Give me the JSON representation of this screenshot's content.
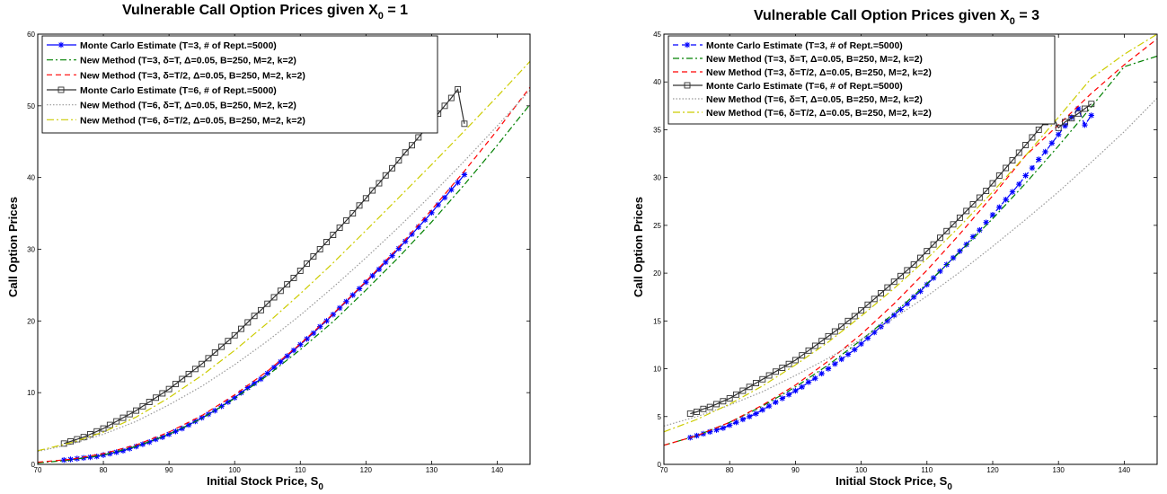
{
  "chart_data": [
    {
      "type": "line",
      "title": "Vulnerable Call Option Prices given X",
      "title_sub": "0",
      "title_tail": " = 1",
      "xlabel": "Initial Stock Price, S",
      "xlabel_sub": "0",
      "ylabel": "Call Option Prices",
      "xlim": [
        70,
        145
      ],
      "ylim": [
        0,
        60
      ],
      "xticks": [
        70,
        80,
        90,
        100,
        110,
        120,
        130,
        140
      ],
      "yticks": [
        0,
        10,
        20,
        30,
        40,
        50,
        60
      ],
      "legend_position": "top-left",
      "series": [
        {
          "name": "Monte Carlo Estimate (T=3, # of Rept.=5000)",
          "color": "#0000ff",
          "dash": "",
          "marker": "star",
          "x": [
            74,
            75,
            76,
            77,
            78,
            79,
            80,
            81,
            82,
            83,
            84,
            85,
            86,
            87,
            88,
            89,
            90,
            91,
            92,
            93,
            94,
            95,
            96,
            97,
            98,
            99,
            100,
            101,
            102,
            103,
            104,
            105,
            106,
            107,
            108,
            109,
            110,
            111,
            112,
            113,
            114,
            115,
            116,
            117,
            118,
            119,
            120,
            121,
            122,
            123,
            124,
            125,
            126,
            127,
            128,
            129,
            130,
            131,
            132,
            133,
            134,
            135
          ],
          "y": [
            0.6,
            0.7,
            0.8,
            0.9,
            1.0,
            1.1,
            1.3,
            1.5,
            1.7,
            1.9,
            2.2,
            2.5,
            2.8,
            3.1,
            3.5,
            3.8,
            4.2,
            4.6,
            5.0,
            5.5,
            6.0,
            6.5,
            7.0,
            7.5,
            8.1,
            8.7,
            9.3,
            10.0,
            10.7,
            11.3,
            11.9,
            12.7,
            13.5,
            14.3,
            15.1,
            15.9,
            16.7,
            17.5,
            18.3,
            19.2,
            20.0,
            20.9,
            21.8,
            22.7,
            23.6,
            24.5,
            25.4,
            26.3,
            27.2,
            28.2,
            29.1,
            30.1,
            31.1,
            32.1,
            33.1,
            34.1,
            35.1,
            36.2,
            37.2,
            38.3,
            39.3,
            40.4
          ]
        },
        {
          "name": "New Method (T=3, δ=T, Δ=0.05, B=250, M=2, k=2)",
          "color": "#008000",
          "dash": "7 3 2 3",
          "marker": "",
          "x": [
            70,
            75,
            80,
            85,
            90,
            95,
            100,
            105,
            110,
            115,
            120,
            125,
            130,
            135,
            140,
            145
          ],
          "y": [
            0.2,
            0.6,
            1.3,
            2.5,
            4.2,
            6.4,
            9.2,
            12.4,
            16.0,
            19.9,
            24.3,
            28.9,
            33.8,
            39.0,
            44.5,
            50.2
          ]
        },
        {
          "name": "New Method (T=3, δ=T/2, Δ=0.05, B=250, M=2, k=2)",
          "color": "#ff0000",
          "dash": "6 4",
          "marker": "",
          "x": [
            70,
            75,
            80,
            85,
            90,
            95,
            100,
            105,
            110,
            115,
            120,
            125,
            130,
            135,
            140,
            145
          ],
          "y": [
            0.3,
            0.7,
            1.5,
            2.7,
            4.5,
            6.8,
            9.7,
            13.0,
            16.8,
            21.0,
            25.5,
            30.3,
            35.5,
            40.9,
            46.6,
            52.6
          ]
        },
        {
          "name": "Monte Carlo Estimate (T=6, # of Rept.=5000)",
          "color": "#303030",
          "dash": "",
          "marker": "square",
          "x": [
            74,
            75,
            76,
            77,
            78,
            79,
            80,
            81,
            82,
            83,
            84,
            85,
            86,
            87,
            88,
            89,
            90,
            91,
            92,
            93,
            94,
            95,
            96,
            97,
            98,
            99,
            100,
            101,
            102,
            103,
            104,
            105,
            106,
            107,
            108,
            109,
            110,
            111,
            112,
            113,
            114,
            115,
            116,
            117,
            118,
            119,
            120,
            121,
            122,
            123,
            124,
            125,
            126,
            127,
            128,
            129,
            130,
            131,
            132,
            133,
            134,
            135
          ],
          "y": [
            2.9,
            3.2,
            3.5,
            3.8,
            4.2,
            4.6,
            5.0,
            5.5,
            6.0,
            6.5,
            7.0,
            7.5,
            8.1,
            8.7,
            9.3,
            9.9,
            10.5,
            11.2,
            11.9,
            12.6,
            13.3,
            14.0,
            14.8,
            15.6,
            16.4,
            17.2,
            18.0,
            18.9,
            19.8,
            20.7,
            21.5,
            22.4,
            23.3,
            24.2,
            25.1,
            26.0,
            27.0,
            28.0,
            29.0,
            30.0,
            31.0,
            32.0,
            33.0,
            34.0,
            35.0,
            36.1,
            37.1,
            38.2,
            39.2,
            40.3,
            41.3,
            42.4,
            43.5,
            44.5,
            45.6,
            46.7,
            47.8,
            48.9,
            50.0,
            51.1,
            52.3,
            47.5
          ]
        },
        {
          "name": "New Method (T=6, δ=T, Δ=0.05, B=250, M=2, k=2)",
          "color": "#999999",
          "dash": "1.5 2",
          "marker": "",
          "x": [
            70,
            75,
            80,
            85,
            90,
            95,
            100,
            105,
            110,
            115,
            120,
            125,
            130,
            135,
            140,
            145
          ],
          "y": [
            1.8,
            2.8,
            4.2,
            6.0,
            8.3,
            10.9,
            13.9,
            17.2,
            20.8,
            24.7,
            28.8,
            33.1,
            37.6,
            42.3,
            47.2,
            52.2
          ]
        },
        {
          "name": "New Method (T=6, δ=T/2, Δ=0.05, B=250, M=2, k=2)",
          "color": "#cccc00",
          "dash": "8 3 2 3",
          "marker": "",
          "x": [
            70,
            75,
            80,
            85,
            90,
            95,
            100,
            105,
            110,
            115,
            120,
            125,
            130,
            135,
            140,
            145
          ],
          "y": [
            1.9,
            3.0,
            4.5,
            6.6,
            9.3,
            12.4,
            15.9,
            19.7,
            23.8,
            28.1,
            32.6,
            37.2,
            41.8,
            46.5,
            51.3,
            56.2
          ]
        }
      ]
    },
    {
      "type": "line",
      "title": "Vulnerable Call Option Prices given X",
      "title_sub": "0",
      "title_tail": " = 3",
      "xlabel": "Initial Stock Price, S",
      "xlabel_sub": "0",
      "ylabel": "Call Option Prices",
      "xlim": [
        70,
        145
      ],
      "ylim": [
        0,
        45
      ],
      "xticks": [
        70,
        80,
        90,
        100,
        110,
        120,
        130,
        140
      ],
      "yticks": [
        0,
        5,
        10,
        15,
        20,
        25,
        30,
        35,
        40,
        45
      ],
      "legend_position": "top-left",
      "series": [
        {
          "name": "Monte Carlo Estimate (T=3, # of Rept.=5000)",
          "color": "#0000ff",
          "dash": "6 4",
          "marker": "star",
          "x": [
            74,
            75,
            76,
            77,
            78,
            79,
            80,
            81,
            82,
            83,
            84,
            85,
            86,
            87,
            88,
            89,
            90,
            91,
            92,
            93,
            94,
            95,
            96,
            97,
            98,
            99,
            100,
            101,
            102,
            103,
            104,
            105,
            106,
            107,
            108,
            109,
            110,
            111,
            112,
            113,
            114,
            115,
            116,
            117,
            118,
            119,
            120,
            121,
            122,
            123,
            124,
            125,
            126,
            127,
            128,
            129,
            130,
            131,
            132,
            133,
            134,
            135
          ],
          "y": [
            2.8,
            3.0,
            3.2,
            3.4,
            3.6,
            3.8,
            4.1,
            4.4,
            4.7,
            5.0,
            5.3,
            5.7,
            6.1,
            6.5,
            6.9,
            7.3,
            7.7,
            8.1,
            8.6,
            9.0,
            9.5,
            10.0,
            10.5,
            11.0,
            11.5,
            12.0,
            12.6,
            13.2,
            13.8,
            14.4,
            15.0,
            15.6,
            16.2,
            16.8,
            17.5,
            18.1,
            18.8,
            19.5,
            20.2,
            20.9,
            21.6,
            22.3,
            23.0,
            23.8,
            24.5,
            25.3,
            26.1,
            26.9,
            27.7,
            28.5,
            29.3,
            30.2,
            31.0,
            31.9,
            32.7,
            33.6,
            34.5,
            35.4,
            36.3,
            37.2,
            35.5,
            36.5
          ]
        },
        {
          "name": "New Method (T=3, δ=T, Δ=0.05, B=250, M=2, k=2)",
          "color": "#008000",
          "dash": "7 3 2 3",
          "marker": "",
          "x": [
            70,
            75,
            80,
            85,
            90,
            95,
            100,
            105,
            110,
            115,
            120,
            125,
            130,
            135,
            140,
            145
          ],
          "y": [
            2.0,
            3.0,
            4.4,
            6.1,
            8.1,
            10.4,
            13.0,
            15.8,
            18.9,
            22.2,
            25.7,
            29.4,
            33.3,
            37.4,
            41.6,
            42.7
          ]
        },
        {
          "name": "New Method (T=3, δ=T/2, Δ=0.05, B=250, M=2, k=2)",
          "color": "#ff0000",
          "dash": "6 4",
          "marker": "",
          "x": [
            70,
            75,
            80,
            85,
            90,
            95,
            100,
            105,
            110,
            115,
            120,
            125,
            130,
            135,
            140,
            145
          ],
          "y": [
            2.0,
            3.0,
            4.4,
            6.2,
            8.3,
            10.8,
            13.6,
            16.8,
            20.3,
            24.1,
            28.1,
            32.3,
            35.5,
            38.8,
            41.8,
            44.5
          ]
        },
        {
          "name": "Monte Carlo Estimate (T=6, # of Rept.=5000)",
          "color": "#303030",
          "dash": "",
          "marker": "square",
          "x": [
            74,
            75,
            76,
            77,
            78,
            79,
            80,
            81,
            82,
            83,
            84,
            85,
            86,
            87,
            88,
            89,
            90,
            91,
            92,
            93,
            94,
            95,
            96,
            97,
            98,
            99,
            100,
            101,
            102,
            103,
            104,
            105,
            106,
            107,
            108,
            109,
            110,
            111,
            112,
            113,
            114,
            115,
            116,
            117,
            118,
            119,
            120,
            121,
            122,
            123,
            124,
            125,
            126,
            127,
            128,
            129,
            130,
            131,
            132,
            133,
            134,
            135
          ],
          "y": [
            5.3,
            5.5,
            5.8,
            6.0,
            6.3,
            6.6,
            6.9,
            7.3,
            7.7,
            8.1,
            8.5,
            8.9,
            9.3,
            9.7,
            10.1,
            10.5,
            10.9,
            11.4,
            11.9,
            12.4,
            12.9,
            13.4,
            13.9,
            14.4,
            15.0,
            15.5,
            16.1,
            16.7,
            17.3,
            17.9,
            18.5,
            19.1,
            19.7,
            20.3,
            20.9,
            21.6,
            22.3,
            23.0,
            23.7,
            24.4,
            25.1,
            25.8,
            26.5,
            27.2,
            27.9,
            28.6,
            29.4,
            30.2,
            31.0,
            31.8,
            32.6,
            33.4,
            34.2,
            35.0,
            35.8,
            36.6,
            35.2,
            35.8,
            36.2,
            36.7,
            37.2,
            37.7
          ]
        },
        {
          "name": "New Method (T=6, δ=T, Δ=0.05, B=250, M=2, k=2)",
          "color": "#999999",
          "dash": "1.5 2",
          "marker": "",
          "x": [
            70,
            75,
            80,
            85,
            90,
            95,
            100,
            105,
            110,
            115,
            120,
            125,
            130,
            135,
            140,
            145
          ],
          "y": [
            4.0,
            5.0,
            6.2,
            7.6,
            9.3,
            11.1,
            13.1,
            15.3,
            17.6,
            20.1,
            22.8,
            25.6,
            28.5,
            31.6,
            34.8,
            38.3
          ]
        },
        {
          "name": "New Method (T=6, δ=T/2, Δ=0.05, B=250, M=2, k=2)",
          "color": "#cccc00",
          "dash": "8 3 2 3",
          "marker": "",
          "x": [
            70,
            75,
            80,
            85,
            90,
            95,
            100,
            105,
            110,
            115,
            120,
            125,
            130,
            135,
            140,
            145
          ],
          "y": [
            3.4,
            4.7,
            6.3,
            8.2,
            10.4,
            12.8,
            15.5,
            18.4,
            21.5,
            24.9,
            28.5,
            32.3,
            36.3,
            40.4,
            42.9,
            45.0
          ]
        }
      ]
    }
  ]
}
